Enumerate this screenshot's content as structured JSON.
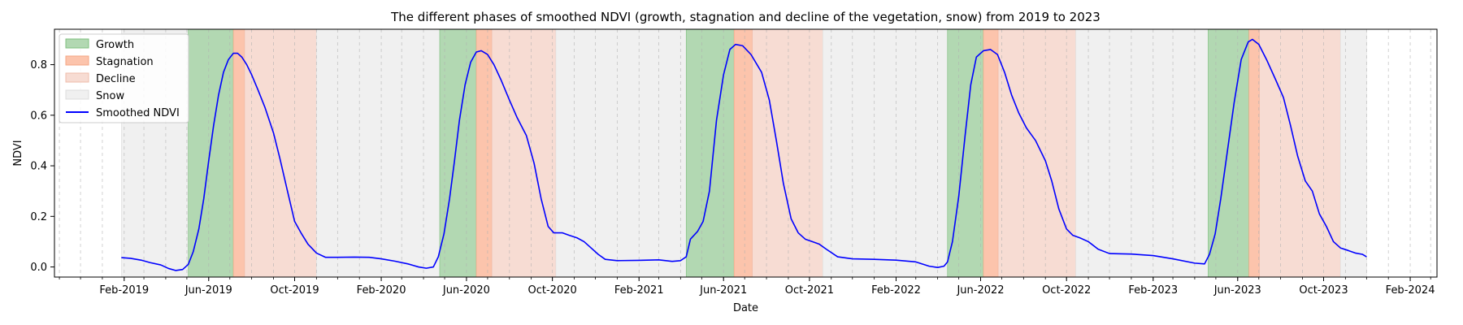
{
  "chart_data": {
    "type": "line",
    "title": "The different phases of smoothed NDVI (growth, stagnation and decline of the vegetation, snow) from 2019 to 2023",
    "xlabel": "Date",
    "ylabel": "NDVI",
    "xlim": [
      "2018-10-25",
      "2024-03-10"
    ],
    "ylim": [
      -0.04,
      0.94
    ],
    "grid": "x-dashed",
    "legend_position": "upper-left",
    "x_ticks": [
      {
        "date": "2019-02-01",
        "label": "Feb-2019"
      },
      {
        "date": "2019-06-01",
        "label": "Jun-2019"
      },
      {
        "date": "2019-10-01",
        "label": "Oct-2019"
      },
      {
        "date": "2020-02-01",
        "label": "Feb-2020"
      },
      {
        "date": "2020-06-01",
        "label": "Jun-2020"
      },
      {
        "date": "2020-10-01",
        "label": "Oct-2020"
      },
      {
        "date": "2021-02-01",
        "label": "Feb-2021"
      },
      {
        "date": "2021-06-01",
        "label": "Jun-2021"
      },
      {
        "date": "2021-10-01",
        "label": "Oct-2021"
      },
      {
        "date": "2022-02-01",
        "label": "Feb-2022"
      },
      {
        "date": "2022-06-01",
        "label": "Jun-2022"
      },
      {
        "date": "2022-10-01",
        "label": "Oct-2022"
      },
      {
        "date": "2023-02-01",
        "label": "Feb-2023"
      },
      {
        "date": "2023-06-01",
        "label": "Jun-2023"
      },
      {
        "date": "2023-10-01",
        "label": "Oct-2023"
      },
      {
        "date": "2024-02-01",
        "label": "Feb-2024"
      }
    ],
    "y_ticks": [
      0.0,
      0.2,
      0.4,
      0.6,
      0.8
    ],
    "y_tick_labels": [
      "0.0",
      "0.2",
      "0.4",
      "0.6",
      "0.8"
    ],
    "phases": [
      {
        "phase": "Snow",
        "start": "2019-01-28",
        "end": "2019-05-03"
      },
      {
        "phase": "Growth",
        "start": "2019-05-03",
        "end": "2019-07-06"
      },
      {
        "phase": "Stagnation",
        "start": "2019-07-06",
        "end": "2019-07-22"
      },
      {
        "phase": "Decline",
        "start": "2019-07-22",
        "end": "2019-11-01"
      },
      {
        "phase": "Snow",
        "start": "2019-11-01",
        "end": "2020-04-24"
      },
      {
        "phase": "Growth",
        "start": "2020-04-24",
        "end": "2020-06-15"
      },
      {
        "phase": "Stagnation",
        "start": "2020-06-15",
        "end": "2020-07-07"
      },
      {
        "phase": "Decline",
        "start": "2020-07-07",
        "end": "2020-10-06"
      },
      {
        "phase": "Snow",
        "start": "2020-10-06",
        "end": "2021-04-09"
      },
      {
        "phase": "Growth",
        "start": "2021-04-09",
        "end": "2021-06-16"
      },
      {
        "phase": "Stagnation",
        "start": "2021-06-16",
        "end": "2021-07-12"
      },
      {
        "phase": "Decline",
        "start": "2021-07-12",
        "end": "2021-10-20"
      },
      {
        "phase": "Snow",
        "start": "2021-10-20",
        "end": "2022-04-15"
      },
      {
        "phase": "Growth",
        "start": "2022-04-15",
        "end": "2022-06-05"
      },
      {
        "phase": "Stagnation",
        "start": "2022-06-05",
        "end": "2022-06-26"
      },
      {
        "phase": "Decline",
        "start": "2022-06-26",
        "end": "2022-10-14"
      },
      {
        "phase": "Snow",
        "start": "2022-10-14",
        "end": "2023-04-20"
      },
      {
        "phase": "Growth",
        "start": "2023-04-20",
        "end": "2023-06-17"
      },
      {
        "phase": "Stagnation",
        "start": "2023-06-17",
        "end": "2023-07-02"
      },
      {
        "phase": "Decline",
        "start": "2023-07-02",
        "end": "2023-10-25"
      },
      {
        "phase": "Snow",
        "start": "2023-10-25",
        "end": "2023-12-01"
      }
    ],
    "series": [
      {
        "name": "Smoothed NDVI",
        "color": "#0000ff",
        "points": [
          [
            "2019-01-28",
            0.037
          ],
          [
            "2019-02-10",
            0.034
          ],
          [
            "2019-02-25",
            0.027
          ],
          [
            "2019-03-10",
            0.017
          ],
          [
            "2019-03-25",
            0.008
          ],
          [
            "2019-04-05",
            -0.006
          ],
          [
            "2019-04-15",
            -0.014
          ],
          [
            "2019-04-25",
            -0.01
          ],
          [
            "2019-05-03",
            0.01
          ],
          [
            "2019-05-10",
            0.06
          ],
          [
            "2019-05-18",
            0.15
          ],
          [
            "2019-05-25",
            0.27
          ],
          [
            "2019-06-01",
            0.42
          ],
          [
            "2019-06-08",
            0.56
          ],
          [
            "2019-06-15",
            0.68
          ],
          [
            "2019-06-22",
            0.77
          ],
          [
            "2019-06-29",
            0.82
          ],
          [
            "2019-07-06",
            0.845
          ],
          [
            "2019-07-12",
            0.845
          ],
          [
            "2019-07-18",
            0.83
          ],
          [
            "2019-07-25",
            0.8
          ],
          [
            "2019-08-01",
            0.76
          ],
          [
            "2019-08-10",
            0.7
          ],
          [
            "2019-08-20",
            0.63
          ],
          [
            "2019-09-01",
            0.53
          ],
          [
            "2019-09-10",
            0.43
          ],
          [
            "2019-09-20",
            0.31
          ],
          [
            "2019-10-01",
            0.18
          ],
          [
            "2019-10-10",
            0.135
          ],
          [
            "2019-10-20",
            0.09
          ],
          [
            "2019-11-01",
            0.055
          ],
          [
            "2019-11-14",
            0.038
          ],
          [
            "2019-12-01",
            0.038
          ],
          [
            "2019-12-25",
            0.039
          ],
          [
            "2020-01-15",
            0.038
          ],
          [
            "2020-02-01",
            0.032
          ],
          [
            "2020-02-20",
            0.023
          ],
          [
            "2020-03-10",
            0.012
          ],
          [
            "2020-03-25",
            0.0
          ],
          [
            "2020-04-05",
            -0.005
          ],
          [
            "2020-04-15",
            0.0
          ],
          [
            "2020-04-22",
            0.04
          ],
          [
            "2020-04-30",
            0.13
          ],
          [
            "2020-05-08",
            0.27
          ],
          [
            "2020-05-15",
            0.42
          ],
          [
            "2020-05-22",
            0.58
          ],
          [
            "2020-05-30",
            0.72
          ],
          [
            "2020-06-07",
            0.81
          ],
          [
            "2020-06-15",
            0.85
          ],
          [
            "2020-06-22",
            0.855
          ],
          [
            "2020-07-01",
            0.84
          ],
          [
            "2020-07-10",
            0.8
          ],
          [
            "2020-07-20",
            0.74
          ],
          [
            "2020-08-01",
            0.66
          ],
          [
            "2020-08-12",
            0.59
          ],
          [
            "2020-08-25",
            0.52
          ],
          [
            "2020-09-05",
            0.41
          ],
          [
            "2020-09-15",
            0.27
          ],
          [
            "2020-09-25",
            0.16
          ],
          [
            "2020-10-03",
            0.135
          ],
          [
            "2020-10-15",
            0.135
          ],
          [
            "2020-10-25",
            0.125
          ],
          [
            "2020-11-05",
            0.115
          ],
          [
            "2020-11-15",
            0.1
          ],
          [
            "2020-11-25",
            0.075
          ],
          [
            "2020-12-05",
            0.05
          ],
          [
            "2020-12-15",
            0.03
          ],
          [
            "2021-01-01",
            0.025
          ],
          [
            "2021-02-01",
            0.026
          ],
          [
            "2021-03-01",
            0.028
          ],
          [
            "2021-03-20",
            0.022
          ],
          [
            "2021-04-01",
            0.025
          ],
          [
            "2021-04-09",
            0.04
          ],
          [
            "2021-04-15",
            0.11
          ],
          [
            "2021-04-25",
            0.14
          ],
          [
            "2021-05-03",
            0.18
          ],
          [
            "2021-05-12",
            0.3
          ],
          [
            "2021-05-22",
            0.58
          ],
          [
            "2021-06-01",
            0.76
          ],
          [
            "2021-06-10",
            0.86
          ],
          [
            "2021-06-18",
            0.88
          ],
          [
            "2021-06-28",
            0.875
          ],
          [
            "2021-07-10",
            0.84
          ],
          [
            "2021-07-25",
            0.77
          ],
          [
            "2021-08-05",
            0.66
          ],
          [
            "2021-08-15",
            0.5
          ],
          [
            "2021-08-25",
            0.33
          ],
          [
            "2021-09-05",
            0.19
          ],
          [
            "2021-09-15",
            0.135
          ],
          [
            "2021-09-25",
            0.11
          ],
          [
            "2021-10-05",
            0.1
          ],
          [
            "2021-10-15",
            0.09
          ],
          [
            "2021-10-25",
            0.07
          ],
          [
            "2021-11-10",
            0.04
          ],
          [
            "2021-12-01",
            0.032
          ],
          [
            "2022-01-01",
            0.03
          ],
          [
            "2022-02-01",
            0.027
          ],
          [
            "2022-03-01",
            0.02
          ],
          [
            "2022-03-20",
            0.003
          ],
          [
            "2022-04-01",
            -0.002
          ],
          [
            "2022-04-10",
            0.003
          ],
          [
            "2022-04-15",
            0.02
          ],
          [
            "2022-04-22",
            0.1
          ],
          [
            "2022-05-01",
            0.28
          ],
          [
            "2022-05-10",
            0.52
          ],
          [
            "2022-05-18",
            0.72
          ],
          [
            "2022-05-26",
            0.83
          ],
          [
            "2022-06-05",
            0.855
          ],
          [
            "2022-06-15",
            0.86
          ],
          [
            "2022-06-25",
            0.84
          ],
          [
            "2022-07-05",
            0.77
          ],
          [
            "2022-07-15",
            0.68
          ],
          [
            "2022-07-25",
            0.61
          ],
          [
            "2022-08-05",
            0.55
          ],
          [
            "2022-08-18",
            0.5
          ],
          [
            "2022-09-01",
            0.42
          ],
          [
            "2022-09-10",
            0.34
          ],
          [
            "2022-09-20",
            0.23
          ],
          [
            "2022-10-01",
            0.15
          ],
          [
            "2022-10-10",
            0.125
          ],
          [
            "2022-10-20",
            0.115
          ],
          [
            "2022-11-01",
            0.1
          ],
          [
            "2022-11-15",
            0.07
          ],
          [
            "2022-12-01",
            0.053
          ],
          [
            "2023-01-01",
            0.051
          ],
          [
            "2023-02-01",
            0.045
          ],
          [
            "2023-03-01",
            0.032
          ],
          [
            "2023-04-01",
            0.015
          ],
          [
            "2023-04-15",
            0.012
          ],
          [
            "2023-04-22",
            0.05
          ],
          [
            "2023-04-30",
            0.13
          ],
          [
            "2023-05-08",
            0.27
          ],
          [
            "2023-05-17",
            0.45
          ],
          [
            "2023-05-27",
            0.65
          ],
          [
            "2023-06-06",
            0.82
          ],
          [
            "2023-06-16",
            0.89
          ],
          [
            "2023-06-22",
            0.9
          ],
          [
            "2023-07-01",
            0.88
          ],
          [
            "2023-07-12",
            0.82
          ],
          [
            "2023-07-25",
            0.74
          ],
          [
            "2023-08-05",
            0.67
          ],
          [
            "2023-08-15",
            0.56
          ],
          [
            "2023-08-25",
            0.44
          ],
          [
            "2023-09-05",
            0.34
          ],
          [
            "2023-09-15",
            0.3
          ],
          [
            "2023-09-25",
            0.21
          ],
          [
            "2023-10-05",
            0.16
          ],
          [
            "2023-10-15",
            0.1
          ],
          [
            "2023-10-25",
            0.075
          ],
          [
            "2023-11-05",
            0.065
          ],
          [
            "2023-11-15",
            0.055
          ],
          [
            "2023-11-25",
            0.05
          ],
          [
            "2023-12-01",
            0.04
          ]
        ]
      }
    ],
    "legend": [
      {
        "label": "Growth",
        "kind": "patch",
        "color": "#b2d8b2",
        "edge": "#7fbf7f"
      },
      {
        "label": "Stagnation",
        "kind": "patch",
        "color": "#fcc4ac",
        "edge": "#f4a683"
      },
      {
        "label": "Decline",
        "kind": "patch",
        "color": "#f7dcd3",
        "edge": "#efbdab"
      },
      {
        "label": "Snow",
        "kind": "patch",
        "color": "#f0f0f0",
        "edge": "#dcdcdc"
      },
      {
        "label": "Smoothed NDVI",
        "kind": "line",
        "color": "#0000ff"
      }
    ],
    "phase_colors": {
      "Growth": "#b2d8b2",
      "Stagnation": "#fcc4ac",
      "Decline": "#f7dcd3",
      "Snow": "#f0f0f0"
    }
  }
}
